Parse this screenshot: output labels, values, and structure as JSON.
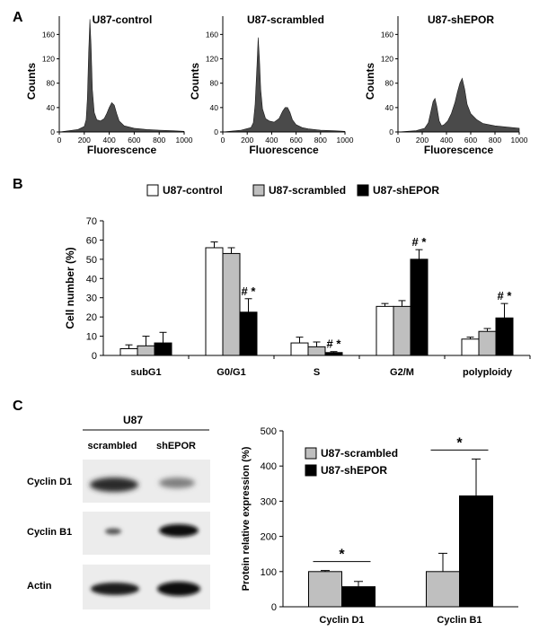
{
  "panels": {
    "A": {
      "letter": "A",
      "histograms": [
        {
          "title": "U87-control",
          "ylabel": "Counts",
          "xlabel": "Fluorescence",
          "yticks": [
            "0",
            "40",
            "80",
            "120",
            "160"
          ],
          "xticks": [
            "0",
            "200",
            "400",
            "600",
            "800",
            "1000"
          ]
        },
        {
          "title": "U87-scrambled",
          "ylabel": "Counts",
          "xlabel": "Fluorescence",
          "yticks": [
            "0",
            "40",
            "80",
            "120",
            "160"
          ],
          "xticks": [
            "0",
            "200",
            "400",
            "600",
            "800",
            "1000"
          ]
        },
        {
          "title": "U87-shEPOR",
          "ylabel": "Counts",
          "xlabel": "Fluorescence",
          "yticks": [
            "0",
            "40",
            "80",
            "120",
            "160"
          ],
          "xticks": [
            "0",
            "200",
            "400",
            "600",
            "800",
            "1000"
          ]
        }
      ]
    },
    "B": {
      "letter": "B",
      "legend": [
        "U87-control",
        "U87-scrambled",
        "U87-shEPOR"
      ],
      "ylabel": "Cell number (%)",
      "yticks": [
        "0",
        "10",
        "20",
        "30",
        "40",
        "50",
        "60",
        "70"
      ],
      "categories": [
        "subG1",
        "G0/G1",
        "S",
        "G2/M",
        "polyploidy"
      ],
      "annotations": [
        "# *",
        "# *",
        "# *",
        "# *"
      ]
    },
    "C": {
      "letter": "C",
      "blot_header": "U87",
      "lane_labels": [
        "scrambled",
        "shEPOR"
      ],
      "row_labels": [
        "Cyclin D1",
        "Cyclin B1",
        "Actin"
      ],
      "legend": [
        "U87-scrambled",
        "U87-shEPOR"
      ],
      "ylabel": "Protein relative expression (%)",
      "yticks": [
        "0",
        "100",
        "200",
        "300",
        "400",
        "500"
      ],
      "categories": [
        "Cyclin D1",
        "Cyclin B1"
      ],
      "significance": [
        "*",
        "*"
      ]
    }
  },
  "chart_data": [
    {
      "type": "area",
      "title": "U87-control",
      "xlabel": "Fluorescence",
      "ylabel": "Counts",
      "xlim": [
        0,
        1000
      ],
      "ylim": [
        0,
        190
      ],
      "x": [
        0,
        150,
        200,
        215,
        225,
        235,
        245,
        255,
        265,
        280,
        300,
        330,
        360,
        380,
        400,
        420,
        440,
        460,
        480,
        520,
        600,
        700,
        800,
        900,
        1000
      ],
      "y": [
        0,
        4,
        9,
        20,
        55,
        130,
        185,
        140,
        70,
        32,
        20,
        18,
        22,
        30,
        40,
        48,
        44,
        30,
        18,
        10,
        6,
        4,
        3,
        2,
        1
      ]
    },
    {
      "type": "area",
      "title": "U87-scrambled",
      "xlabel": "Fluorescence",
      "ylabel": "Counts",
      "xlim": [
        0,
        1000
      ],
      "ylim": [
        0,
        190
      ],
      "x": [
        0,
        150,
        230,
        250,
        265,
        280,
        290,
        300,
        310,
        325,
        350,
        380,
        420,
        460,
        490,
        510,
        530,
        550,
        570,
        600,
        650,
        700,
        800,
        900,
        1000
      ],
      "y": [
        0,
        3,
        7,
        15,
        45,
        110,
        155,
        120,
        70,
        38,
        22,
        18,
        16,
        22,
        34,
        40,
        40,
        32,
        20,
        12,
        7,
        5,
        3,
        2,
        1
      ]
    },
    {
      "type": "area",
      "title": "U87-shEPOR",
      "xlabel": "Fluorescence",
      "ylabel": "Counts",
      "xlim": [
        0,
        1000
      ],
      "ylim": [
        0,
        190
      ],
      "x": [
        0,
        150,
        220,
        250,
        270,
        290,
        305,
        320,
        340,
        360,
        380,
        410,
        440,
        470,
        490,
        510,
        530,
        550,
        570,
        600,
        650,
        700,
        800,
        900,
        1000
      ],
      "y": [
        0,
        2,
        6,
        15,
        32,
        50,
        55,
        42,
        18,
        10,
        12,
        18,
        30,
        48,
        65,
        80,
        88,
        70,
        45,
        30,
        20,
        14,
        10,
        8,
        6
      ]
    },
    {
      "type": "bar",
      "ylabel": "Cell number (%)",
      "ylim": [
        0,
        70
      ],
      "categories": [
        "subG1",
        "G0/G1",
        "S",
        "G2/M",
        "polyploidy"
      ],
      "legend": "top",
      "series": [
        {
          "name": "U87-control",
          "values": [
            3.5,
            56,
            6.5,
            25.5,
            8.5
          ],
          "errors": [
            2,
            3,
            3,
            1.5,
            1
          ],
          "color": "#ffffff"
        },
        {
          "name": "U87-scrambled",
          "values": [
            5,
            53,
            4.5,
            25.5,
            12.5
          ],
          "errors": [
            5,
            3,
            2.5,
            3,
            1.5
          ],
          "color": "#bfbfbf"
        },
        {
          "name": "U87-shEPOR",
          "values": [
            6.5,
            22.5,
            1.5,
            50,
            19.5
          ],
          "errors": [
            5.5,
            7,
            0.5,
            5,
            7.5
          ],
          "color": "#000000"
        }
      ]
    },
    {
      "type": "bar",
      "ylabel": "Protein relative expression (%)",
      "ylim": [
        0,
        500
      ],
      "categories": [
        "Cyclin D1",
        "Cyclin B1"
      ],
      "legend": "top",
      "series": [
        {
          "name": "U87-scrambled",
          "values": [
            100,
            100
          ],
          "errors": [
            3,
            52
          ],
          "color": "#bfbfbf"
        },
        {
          "name": "U87-shEPOR",
          "values": [
            57,
            315
          ],
          "errors": [
            15,
            105
          ],
          "color": "#000000"
        }
      ]
    }
  ]
}
